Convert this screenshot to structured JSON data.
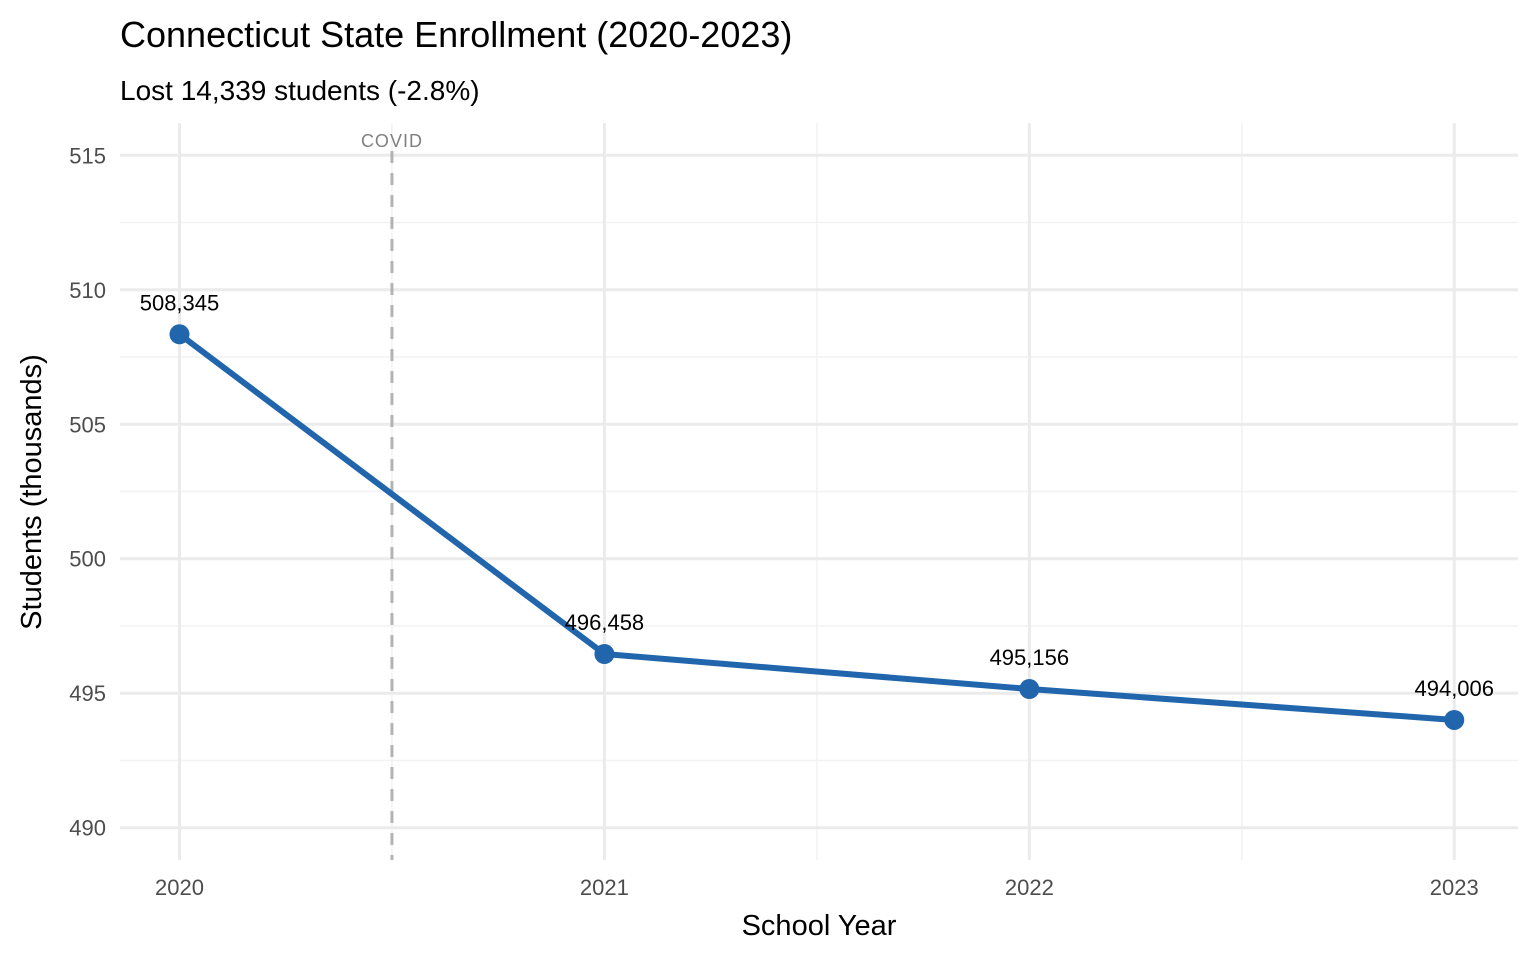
{
  "chart_data": {
    "type": "line",
    "title": "Connecticut State Enrollment (2020-2023)",
    "subtitle": "Lost 14,339 students (-2.8%)",
    "xlabel": "School Year",
    "ylabel": "Students (thousands)",
    "x": [
      2020,
      2021,
      2022,
      2023
    ],
    "values": [
      508.345,
      496.458,
      495.156,
      494.006
    ],
    "data_labels": [
      "508,345",
      "496,458",
      "495,156",
      "494,006"
    ],
    "x_ticks": [
      "2020",
      "2021",
      "2022",
      "2023"
    ],
    "y_ticks": [
      "490",
      "495",
      "500",
      "505",
      "510",
      "515"
    ],
    "xlim": [
      2019.86,
      2023.15
    ],
    "ylim": [
      488.8,
      516.2
    ],
    "grid": true,
    "line_color": "#2166ac",
    "annotation": {
      "x": 2020.5,
      "label": "COVID",
      "style": "dashed",
      "color": "#b3b3b3"
    }
  }
}
